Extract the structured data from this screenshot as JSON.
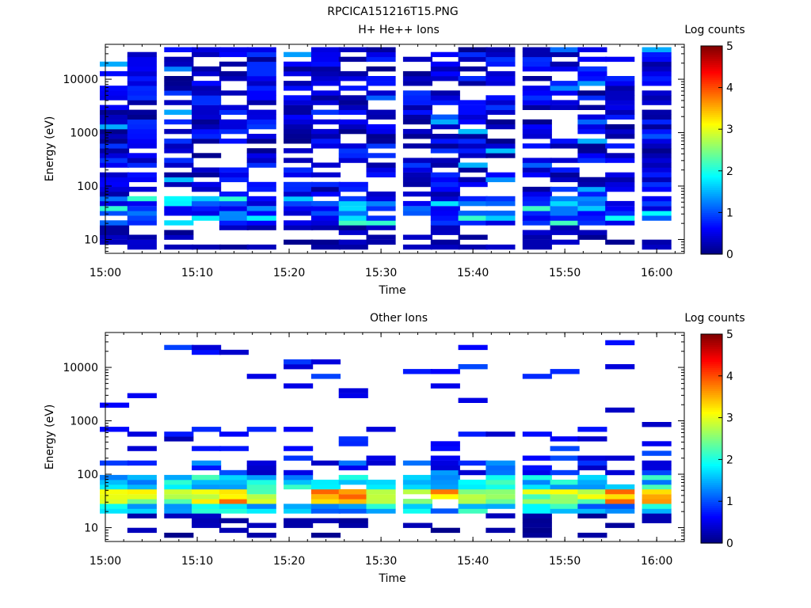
{
  "figure": {
    "title": "RPCICA151216T15.PNG"
  },
  "colormap": [
    "#00007f",
    "#0000ff",
    "#007fff",
    "#00ffff",
    "#7fff7f",
    "#ffff00",
    "#ff7f00",
    "#ff0000",
    "#7f0000"
  ],
  "chart_data": [
    {
      "type": "heatmap",
      "title": "H+ He++ Ions",
      "xlabel": "Time",
      "ylabel": "Energy (eV)",
      "x_ticks": [
        "15:00",
        "15:10",
        "15:20",
        "15:30",
        "15:40",
        "15:50",
        "16:00"
      ],
      "x_range": [
        "15:00",
        "16:03"
      ],
      "y_scale": "log",
      "y_ticks": [
        10,
        100,
        1000,
        10000
      ],
      "y_range": [
        5.5,
        45000
      ],
      "colorbar": {
        "label": "Log counts",
        "ticks": [
          0,
          1,
          2,
          3,
          4,
          5
        ],
        "range": [
          0,
          5
        ]
      },
      "columns": [
        "15:01",
        "15:04",
        "15:08",
        "15:11",
        "15:14",
        "15:17",
        "15:21",
        "15:24",
        "15:27",
        "15:30",
        "15:34",
        "15:37",
        "15:40",
        "15:43",
        "15:47",
        "15:50",
        "15:53",
        "15:56",
        "16:00"
      ],
      "energy_bins_eV": [
        7.2,
        8.9,
        11,
        13.5,
        16.6,
        20.5,
        25,
        31,
        38,
        47,
        58,
        71,
        87,
        107,
        132,
        162,
        200,
        246,
        302,
        372,
        458,
        563,
        693,
        853,
        1050,
        1290,
        1590,
        1960,
        2410,
        2960,
        3650,
        4490,
        5520,
        6800,
        8370,
        10300,
        12700,
        15600,
        19200,
        23600,
        29000,
        35700
      ],
      "notes": "Sparse low-count (log 0–1.2) coverage across all energies 7–36000 eV; brighter cells (log ~1–2.2) near 30–60 eV."
    },
    {
      "type": "heatmap",
      "title": "Other Ions",
      "xlabel": "Time",
      "ylabel": "Energy (eV)",
      "x_ticks": [
        "15:00",
        "15:10",
        "15:20",
        "15:30",
        "15:40",
        "15:50",
        "16:00"
      ],
      "x_range": [
        "15:00",
        "16:03"
      ],
      "y_scale": "log",
      "y_ticks": [
        10,
        100,
        1000,
        10000
      ],
      "y_range": [
        5.5,
        45000
      ],
      "colorbar": {
        "label": "Log counts",
        "ticks": [
          0,
          1,
          2,
          3,
          4,
          5
        ],
        "range": [
          0,
          5
        ]
      },
      "columns": [
        "15:01",
        "15:04",
        "15:08",
        "15:11",
        "15:14",
        "15:17",
        "15:21",
        "15:24",
        "15:27",
        "15:30",
        "15:34",
        "15:37",
        "15:40",
        "15:43",
        "15:47",
        "15:50",
        "15:53",
        "15:56",
        "16:00"
      ],
      "energy_bins_eV": [
        7.2,
        8.9,
        11,
        13.5,
        16.6,
        20.5,
        25,
        31,
        38,
        47,
        58,
        71,
        87,
        107,
        132,
        162,
        200,
        246,
        302,
        372,
        458,
        563,
        693,
        853,
        1050,
        1290,
        1590,
        1960,
        2410,
        2960,
        3650,
        4490,
        5520,
        6800,
        8370,
        10300,
        12700,
        15600,
        19200,
        23600,
        29000,
        35700
      ],
      "notes": "Intense band (log ~2.5–3.8) at 25–50 eV, cyan/blue (log 1–2) up to ~150 eV, sparse blue lines at higher energies."
    }
  ]
}
